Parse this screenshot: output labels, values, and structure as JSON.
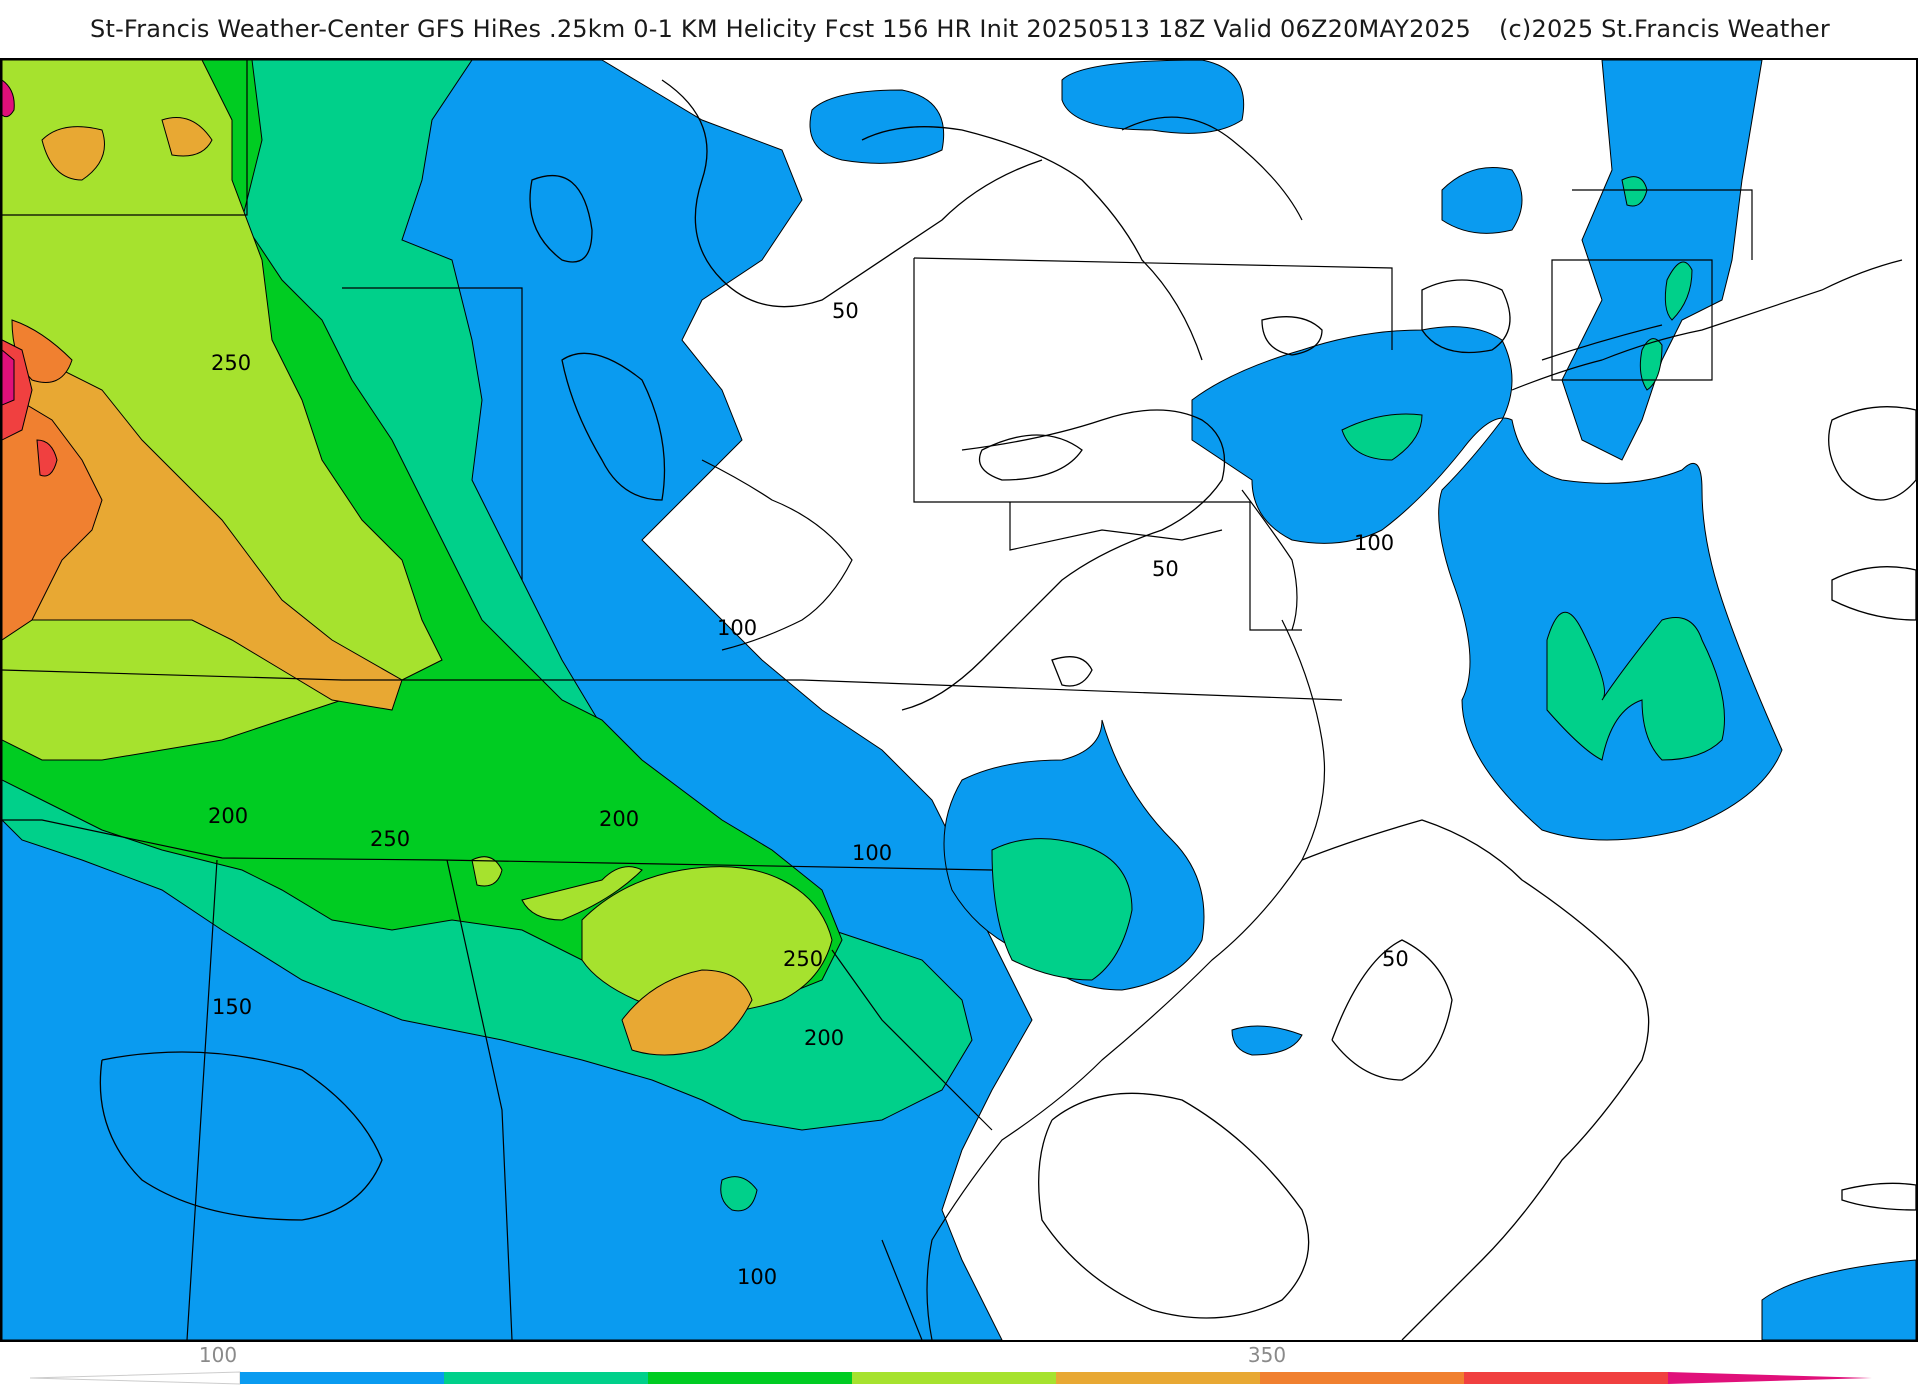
{
  "header": {
    "title": "St-Francis Weather-Center GFS HiRes .25km 0-1 KM Helicity Fcst 156 HR Init 20250513 18Z  Valid 06Z20MAY2025",
    "copyright": "(c)2025 St.Francis Weather"
  },
  "colors": {
    "band_50_100": "#0a9bf0",
    "band_100_150": "#00d08a",
    "band_150_200": "#00cc22",
    "band_200_250": "#a6e22e",
    "band_250_300": "#e8a833",
    "band_300_350": "#f08030",
    "band_350_400": "#f04040",
    "band_400_plus": "#e0107a"
  },
  "colorbar": {
    "tick_labels": [
      "100",
      "350"
    ],
    "segments": [
      "#0a9bf0",
      "#00d08a",
      "#00cc22",
      "#a6e22e",
      "#e8a833",
      "#f08030",
      "#f04040",
      "#e0107a"
    ]
  },
  "contour_labels": [
    "50",
    "50",
    "50",
    "100",
    "100",
    "100",
    "100",
    "150",
    "200",
    "200",
    "200",
    "250",
    "250",
    "250"
  ]
}
